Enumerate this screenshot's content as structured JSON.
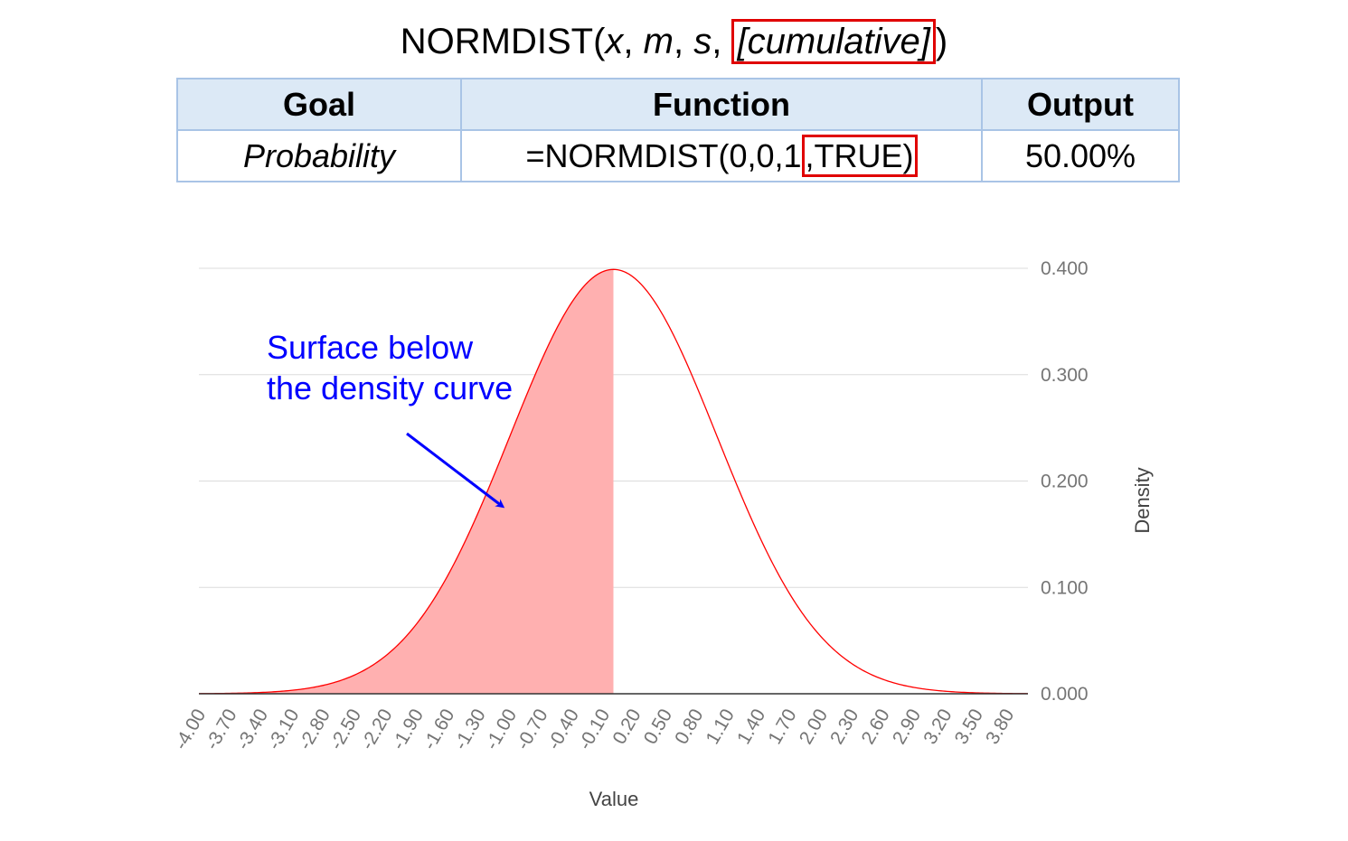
{
  "title": {
    "prefix": "NORMDIST(",
    "x": "x",
    "sep1": ", ",
    "m": "m",
    "sep2": ", ",
    "s": "s",
    "sep3": ", ",
    "cumulative": "[cumulative]",
    "suffix": ")"
  },
  "table": {
    "headers": [
      "Goal",
      "Function",
      "Output"
    ],
    "row": {
      "goal": "Probability",
      "function_prefix": "=NORMDIST(0,0,1",
      "function_highlight": ",TRUE)",
      "output": "50.00%"
    }
  },
  "annotation": {
    "line1": "Surface below",
    "line2": "the density curve"
  },
  "colors": {
    "highlight_box": "#e00000",
    "curve": "#ff0000",
    "fill": "#ffb0b0",
    "annotation": "#0000ff",
    "table_border": "#a9c4e6",
    "table_header_bg": "#dce9f6"
  },
  "chart_data": {
    "type": "area",
    "title": "",
    "xlabel": "Value",
    "ylabel": "Density",
    "distribution": {
      "mean": 0,
      "sd": 1
    },
    "x_range": [
      -4.0,
      4.0
    ],
    "shaded_range": [
      -4.0,
      0.0
    ],
    "ylim": [
      0,
      0.4
    ],
    "x_tick_labels": [
      "-4.00",
      "-3.70",
      "-3.40",
      "-3.10",
      "-2.80",
      "-2.50",
      "-2.20",
      "-1.90",
      "-1.60",
      "-1.30",
      "-1.00",
      "-0.70",
      "-0.40",
      "-0.10",
      "0.20",
      "0.50",
      "0.80",
      "1.10",
      "1.40",
      "1.70",
      "2.00",
      "2.30",
      "2.60",
      "2.90",
      "3.20",
      "3.50",
      "3.80"
    ],
    "y_tick_labels": [
      "0.000",
      "0.100",
      "0.200",
      "0.300",
      "0.400"
    ],
    "y_ticks": [
      0,
      0.1,
      0.2,
      0.3,
      0.4
    ],
    "y_axis_side": "right",
    "grid": true,
    "legend": "none"
  }
}
